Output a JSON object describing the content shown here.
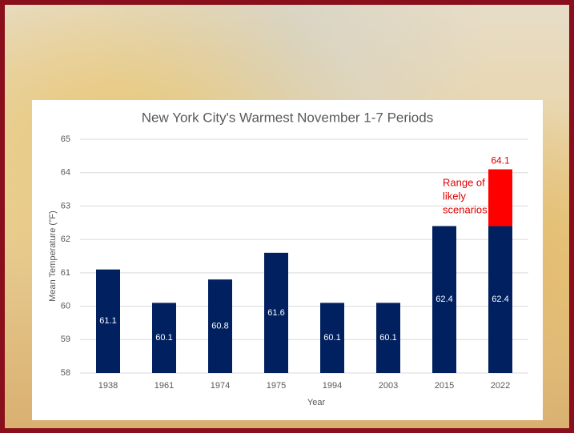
{
  "chart_data": {
    "type": "bar",
    "title": "New York City's Warmest November 1-7 Periods",
    "x_label": "Year",
    "y_label": "Mean Temperature  (°F)",
    "categories": [
      "1938",
      "1961",
      "1974",
      "1975",
      "1994",
      "2003",
      "2015",
      "2022"
    ],
    "values": [
      61.1,
      60.1,
      60.8,
      61.6,
      60.1,
      60.1,
      62.4,
      62.4
    ],
    "color": "#002060",
    "range": {
      "category": "2022",
      "from": 62.4,
      "to": 64.1,
      "color": "#ff0000",
      "annotation": [
        "Range of",
        "likely",
        "scenarios"
      ]
    },
    "ylim": [
      58,
      65
    ],
    "yticks": [
      58,
      59,
      60,
      61,
      62,
      63,
      64,
      65
    ],
    "grid": true
  }
}
